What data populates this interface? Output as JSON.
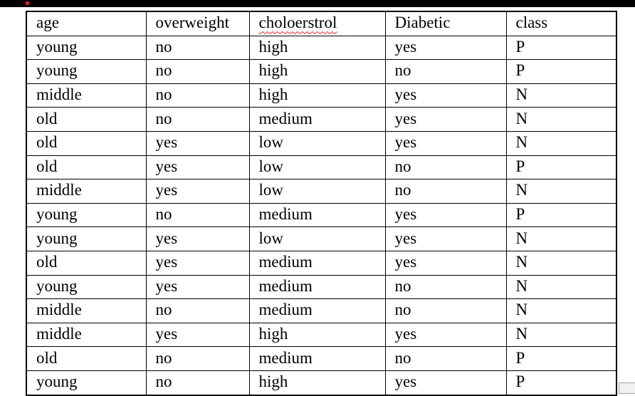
{
  "top_bar": {
    "background_color": "#000000",
    "marker_color": "#e01b24"
  },
  "table": {
    "headers": [
      "age",
      "overweight",
      "choloerstrol",
      "Diabetic",
      "class"
    ],
    "misspelled_header_index": 2,
    "spellcheck_underline_color": "#e02020",
    "rows": [
      [
        "young",
        "no",
        "high",
        "yes",
        "P"
      ],
      [
        "young",
        "no",
        "high",
        "no",
        "P"
      ],
      [
        "middle",
        "no",
        "high",
        "yes",
        "N"
      ],
      [
        "old",
        "no",
        "medium",
        "yes",
        "N"
      ],
      [
        "old",
        "yes",
        "low",
        "yes",
        "N"
      ],
      [
        "old",
        "yes",
        "low",
        "no",
        "P"
      ],
      [
        "middle",
        "yes",
        "low",
        "no",
        "N"
      ],
      [
        "young",
        "no",
        "medium",
        "yes",
        "P"
      ],
      [
        "young",
        "yes",
        "low",
        "yes",
        "N"
      ],
      [
        "old",
        "yes",
        "medium",
        "yes",
        "N"
      ],
      [
        "young",
        "yes",
        "medium",
        "no",
        "N"
      ],
      [
        "middle",
        "no",
        "medium",
        "no",
        "N"
      ],
      [
        "middle",
        "yes",
        "high",
        "yes",
        "N"
      ],
      [
        "old",
        "no",
        "medium",
        "no",
        "P"
      ],
      [
        "young",
        "no",
        "high",
        "yes",
        "P"
      ]
    ]
  }
}
